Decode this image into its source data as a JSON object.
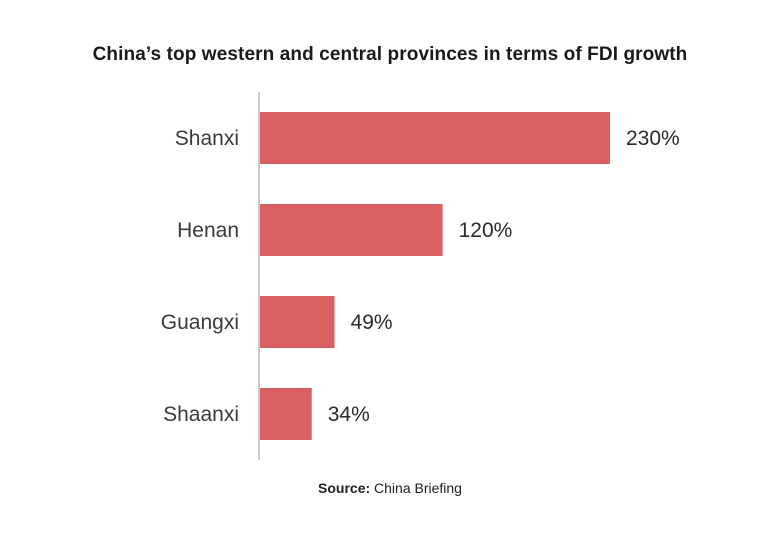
{
  "chart_data": {
    "type": "bar",
    "orientation": "horizontal",
    "title": "China’s top western and central provinces in terms of FDI growth",
    "categories": [
      "Shanxi",
      "Henan",
      "Guangxi",
      "Shaanxi"
    ],
    "values": [
      230,
      120,
      49,
      34
    ],
    "value_labels": [
      "230%",
      "120%",
      "49%",
      "34%"
    ],
    "xlim": [
      0,
      230
    ],
    "grid": false,
    "bar_color": "#d96060",
    "axis_color": "#b8b8b8"
  },
  "source": {
    "label": "Source:",
    "text": "China Briefing"
  }
}
